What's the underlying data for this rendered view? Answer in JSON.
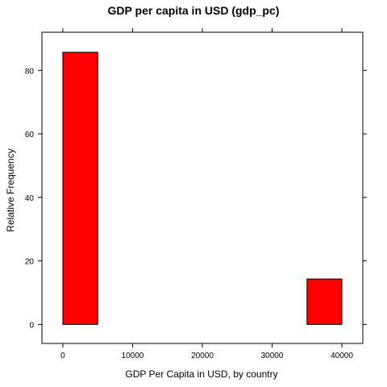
{
  "chart_data": {
    "type": "bar",
    "title": "GDP per capita in USD (gdp_pc)",
    "xlabel": "GDP Per Capita in USD, by country",
    "ylabel": "Relative Frequency",
    "xlim": [
      -3000,
      43000
    ],
    "ylim": [
      -6,
      92
    ],
    "x_ticks": [
      0,
      10000,
      20000,
      30000,
      40000
    ],
    "x_tick_labels": [
      "0",
      "10000",
      "20000",
      "30000",
      "40000"
    ],
    "y_ticks": [
      0,
      20,
      40,
      60,
      80
    ],
    "y_tick_labels": [
      "0",
      "20",
      "40",
      "60",
      "80"
    ],
    "bins": [
      {
        "from": 0,
        "to": 5000,
        "value": 85.7
      },
      {
        "from": 5000,
        "to": 10000,
        "value": 0
      },
      {
        "from": 10000,
        "to": 15000,
        "value": 0
      },
      {
        "from": 15000,
        "to": 20000,
        "value": 0
      },
      {
        "from": 20000,
        "to": 25000,
        "value": 0
      },
      {
        "from": 25000,
        "to": 30000,
        "value": 0
      },
      {
        "from": 30000,
        "to": 35000,
        "value": 0
      },
      {
        "from": 35000,
        "to": 40000,
        "value": 14.3
      }
    ],
    "bar_color": "#ff0000",
    "grid": false
  }
}
